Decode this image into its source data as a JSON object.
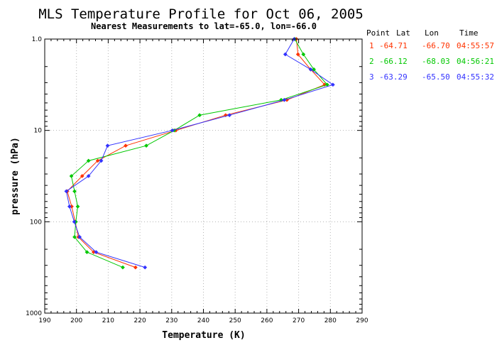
{
  "chart_data": {
    "type": "line",
    "title": "MLS Temperature Profile for Oct 06, 2005",
    "subtitle": "Nearest Measurements to lat=-65.0, lon=-66.0",
    "xlabel": "Temperature (K)",
    "ylabel": "pressure (hPa)",
    "xlim": [
      190,
      290
    ],
    "ylim": [
      1000,
      1.0
    ],
    "y_scale": "log",
    "y_inverted": true,
    "grid": true,
    "x_ticks": [
      "190",
      "200",
      "210",
      "220",
      "230",
      "240",
      "250",
      "260",
      "270",
      "280",
      "290"
    ],
    "y_ticks": [
      {
        "value": 1,
        "label": "1.0"
      },
      {
        "value": 10,
        "label": "10"
      },
      {
        "value": 100,
        "label": "100"
      },
      {
        "value": 1000,
        "label": "1000"
      }
    ],
    "legend": {
      "placement": "right",
      "headers": [
        "Point",
        "Lat",
        "Lon",
        "Time"
      ],
      "rows": [
        {
          "point": "1",
          "lat": "-64.71",
          "lon": "-66.70",
          "time": "04:55:57",
          "color": "#ff3300"
        },
        {
          "point": "2",
          "lat": "-66.12",
          "lon": "-68.03",
          "time": "04:56:21",
          "color": "#00c800"
        },
        {
          "point": "3",
          "lat": "-63.29",
          "lon": "-65.50",
          "time": "04:55:32",
          "color": "#3232ff"
        }
      ]
    },
    "series": [
      {
        "point": "1",
        "color": "#ff3300",
        "points": [
          [
            269.3,
            1.0
          ],
          [
            269.8,
            1.47
          ],
          [
            273.8,
            2.15
          ],
          [
            278.2,
            3.16
          ],
          [
            266.3,
            4.64
          ],
          [
            247.0,
            6.81
          ],
          [
            231.3,
            10.0
          ],
          [
            215.5,
            14.7
          ],
          [
            206.7,
            21.5
          ],
          [
            201.8,
            31.6
          ],
          [
            197.1,
            46.4
          ],
          [
            198.5,
            68.1
          ],
          [
            199.6,
            100
          ],
          [
            200.6,
            147
          ],
          [
            205.4,
            215
          ],
          [
            218.6,
            316
          ]
        ]
      },
      {
        "point": "2",
        "color": "#00c800",
        "points": [
          [
            268.8,
            1.0
          ],
          [
            271.5,
            1.47
          ],
          [
            274.8,
            2.15
          ],
          [
            279.0,
            3.16
          ],
          [
            264.5,
            4.64
          ],
          [
            238.8,
            6.81
          ],
          [
            230.8,
            10.0
          ],
          [
            222.0,
            14.7
          ],
          [
            203.8,
            21.5
          ],
          [
            198.4,
            31.6
          ],
          [
            199.4,
            46.4
          ],
          [
            200.4,
            68.1
          ],
          [
            199.8,
            100
          ],
          [
            199.4,
            147
          ],
          [
            203.3,
            215
          ],
          [
            214.6,
            316
          ]
        ]
      },
      {
        "point": "3",
        "color": "#3232ff",
        "points": [
          [
            268.6,
            1.0
          ],
          [
            265.8,
            1.47
          ],
          [
            273.8,
            2.15
          ],
          [
            280.8,
            3.16
          ],
          [
            265.5,
            4.64
          ],
          [
            248.2,
            6.81
          ],
          [
            230.2,
            10.0
          ],
          [
            209.8,
            14.7
          ],
          [
            207.8,
            21.5
          ],
          [
            203.8,
            31.6
          ],
          [
            196.8,
            46.4
          ],
          [
            197.8,
            68.1
          ],
          [
            199.3,
            100
          ],
          [
            201.0,
            147
          ],
          [
            206.2,
            215
          ],
          [
            221.6,
            316
          ]
        ]
      }
    ]
  }
}
